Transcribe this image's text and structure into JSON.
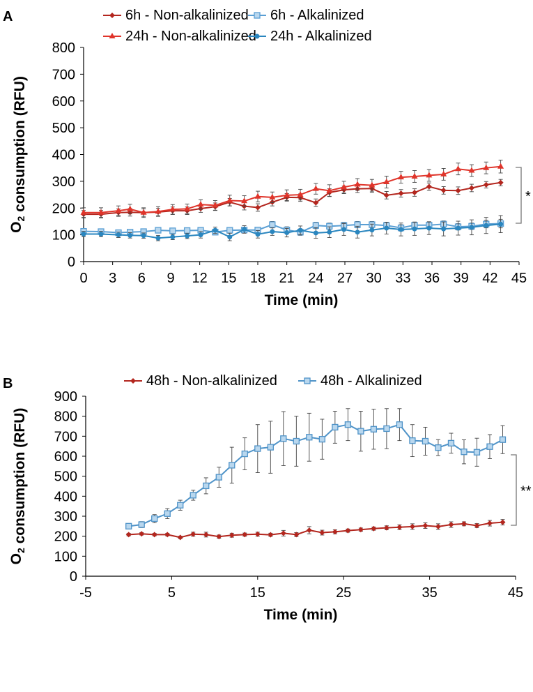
{
  "chart_data": [
    {
      "panel_label": "A",
      "type": "line",
      "xlabel": "Time (min)",
      "ylabel": "O2 consumption (RFU)",
      "xlim": [
        0,
        45
      ],
      "ylim": [
        0,
        800
      ],
      "x_ticks": [
        0,
        3,
        6,
        9,
        12,
        15,
        18,
        21,
        24,
        27,
        30,
        33,
        36,
        39,
        42,
        45
      ],
      "y_ticks": [
        0,
        100,
        200,
        300,
        400,
        500,
        600,
        700,
        800
      ],
      "grid": false,
      "legend_position": "top",
      "significance_label": "*",
      "x": [
        0,
        1.8,
        3.6,
        4.8,
        6.2,
        7.7,
        9.2,
        10.7,
        12.1,
        13.6,
        15.1,
        16.6,
        18,
        19.5,
        21,
        22.4,
        24,
        25.4,
        26.9,
        28.3,
        29.8,
        31.3,
        32.8,
        34.2,
        35.7,
        37.2,
        38.7,
        40.1,
        41.6,
        43.1
      ],
      "series": [
        {
          "name": "6h -  Non-alkalinized",
          "color": "#b3261e",
          "marker": "diamond",
          "values": [
            177,
            177,
            183,
            184,
            183,
            185,
            190,
            190,
            198,
            205,
            222,
            207,
            202,
            222,
            240,
            239,
            220,
            258,
            268,
            272,
            273,
            248,
            255,
            258,
            280,
            266,
            265,
            275,
            287,
            295
          ],
          "errors": [
            14,
            14,
            14,
            14,
            14,
            14,
            14,
            14,
            14,
            14,
            14,
            14,
            14,
            14,
            14,
            14,
            14,
            14,
            14,
            14,
            14,
            14,
            14,
            14,
            14,
            14,
            14,
            14,
            12,
            12
          ]
        },
        {
          "name": "24h - Non-alkalinized",
          "color": "#e0342a",
          "marker": "triangle",
          "values": [
            183,
            183,
            190,
            196,
            183,
            187,
            195,
            197,
            213,
            210,
            228,
            226,
            243,
            240,
            248,
            250,
            272,
            265,
            278,
            288,
            285,
            297,
            315,
            318,
            322,
            326,
            346,
            340,
            350,
            355
          ],
          "errors": [
            18,
            18,
            18,
            18,
            18,
            18,
            18,
            18,
            18,
            18,
            20,
            20,
            20,
            20,
            20,
            20,
            20,
            22,
            22,
            22,
            22,
            22,
            22,
            22,
            22,
            22,
            22,
            22,
            22,
            24
          ]
        },
        {
          "name": "6h  - Alkalinized",
          "color": "#5a9fd4",
          "marker": "square",
          "values": [
            113,
            112,
            108,
            110,
            112,
            117,
            115,
            116,
            117,
            110,
            117,
            118,
            118,
            138,
            118,
            110,
            135,
            132,
            135,
            138,
            138,
            135,
            126,
            136,
            136,
            140,
            130,
            132,
            140,
            142
          ],
          "errors": [
            10,
            10,
            10,
            10,
            10,
            10,
            10,
            10,
            10,
            10,
            10,
            10,
            10,
            12,
            12,
            12,
            12,
            12,
            12,
            12,
            12,
            12,
            12,
            12,
            12,
            12,
            12,
            12,
            14,
            16
          ]
        },
        {
          "name": "24h  - Alkalinized",
          "color": "#2a86bf",
          "marker": "circle",
          "values": [
            103,
            103,
            100,
            98,
            97,
            88,
            92,
            96,
            100,
            117,
            92,
            120,
            102,
            112,
            108,
            117,
            107,
            110,
            120,
            110,
            118,
            125,
            120,
            122,
            125,
            122,
            125,
            128,
            135,
            140
          ],
          "errors": [
            10,
            10,
            10,
            10,
            10,
            10,
            10,
            10,
            12,
            12,
            14,
            14,
            14,
            14,
            16,
            16,
            20,
            20,
            22,
            22,
            22,
            22,
            24,
            24,
            24,
            26,
            26,
            28,
            30,
            32
          ]
        }
      ]
    },
    {
      "panel_label": "B",
      "type": "line",
      "xlabel": "Time (min)",
      "ylabel": "O2 consumption (RFU)",
      "xlim": [
        -5,
        45
      ],
      "ylim": [
        0,
        900
      ],
      "x_ticks": [
        -5,
        5,
        15,
        25,
        35,
        45
      ],
      "y_ticks": [
        0,
        100,
        200,
        300,
        400,
        500,
        600,
        700,
        800,
        900
      ],
      "grid": false,
      "legend_position": "top",
      "significance_label": "**",
      "x": [
        0,
        1.5,
        3,
        4.5,
        6,
        7.5,
        9,
        10.5,
        12,
        13.5,
        15,
        16.5,
        18,
        19.5,
        21,
        22.5,
        24,
        25.5,
        27,
        28.5,
        30,
        31.5,
        33,
        34.5,
        36,
        37.5,
        39,
        40.5,
        42,
        43.5
      ],
      "series": [
        {
          "name": "48h - Non-alkalinized",
          "color": "#b3261e",
          "marker": "diamond",
          "values": [
            208,
            212,
            208,
            208,
            194,
            210,
            208,
            198,
            205,
            208,
            210,
            207,
            215,
            208,
            230,
            218,
            222,
            228,
            233,
            238,
            242,
            245,
            248,
            253,
            248,
            258,
            262,
            253,
            265,
            270
          ],
          "errors": [
            6,
            6,
            6,
            6,
            6,
            10,
            12,
            8,
            10,
            8,
            10,
            8,
            14,
            10,
            18,
            12,
            10,
            8,
            8,
            8,
            10,
            12,
            14,
            14,
            14,
            14,
            10,
            10,
            14,
            14
          ]
        },
        {
          "name": "48h - Alkalinized",
          "color": "#4f93c8",
          "marker": "square",
          "values": [
            250,
            258,
            288,
            313,
            355,
            405,
            452,
            495,
            555,
            612,
            638,
            645,
            688,
            675,
            695,
            685,
            745,
            758,
            725,
            735,
            738,
            758,
            678,
            675,
            643,
            665,
            622,
            620,
            648,
            683
          ],
          "errors": [
            12,
            15,
            20,
            25,
            25,
            25,
            40,
            50,
            90,
            80,
            120,
            130,
            135,
            125,
            120,
            100,
            80,
            80,
            100,
            100,
            100,
            80,
            80,
            70,
            40,
            50,
            60,
            70,
            60,
            70
          ]
        }
      ]
    }
  ]
}
